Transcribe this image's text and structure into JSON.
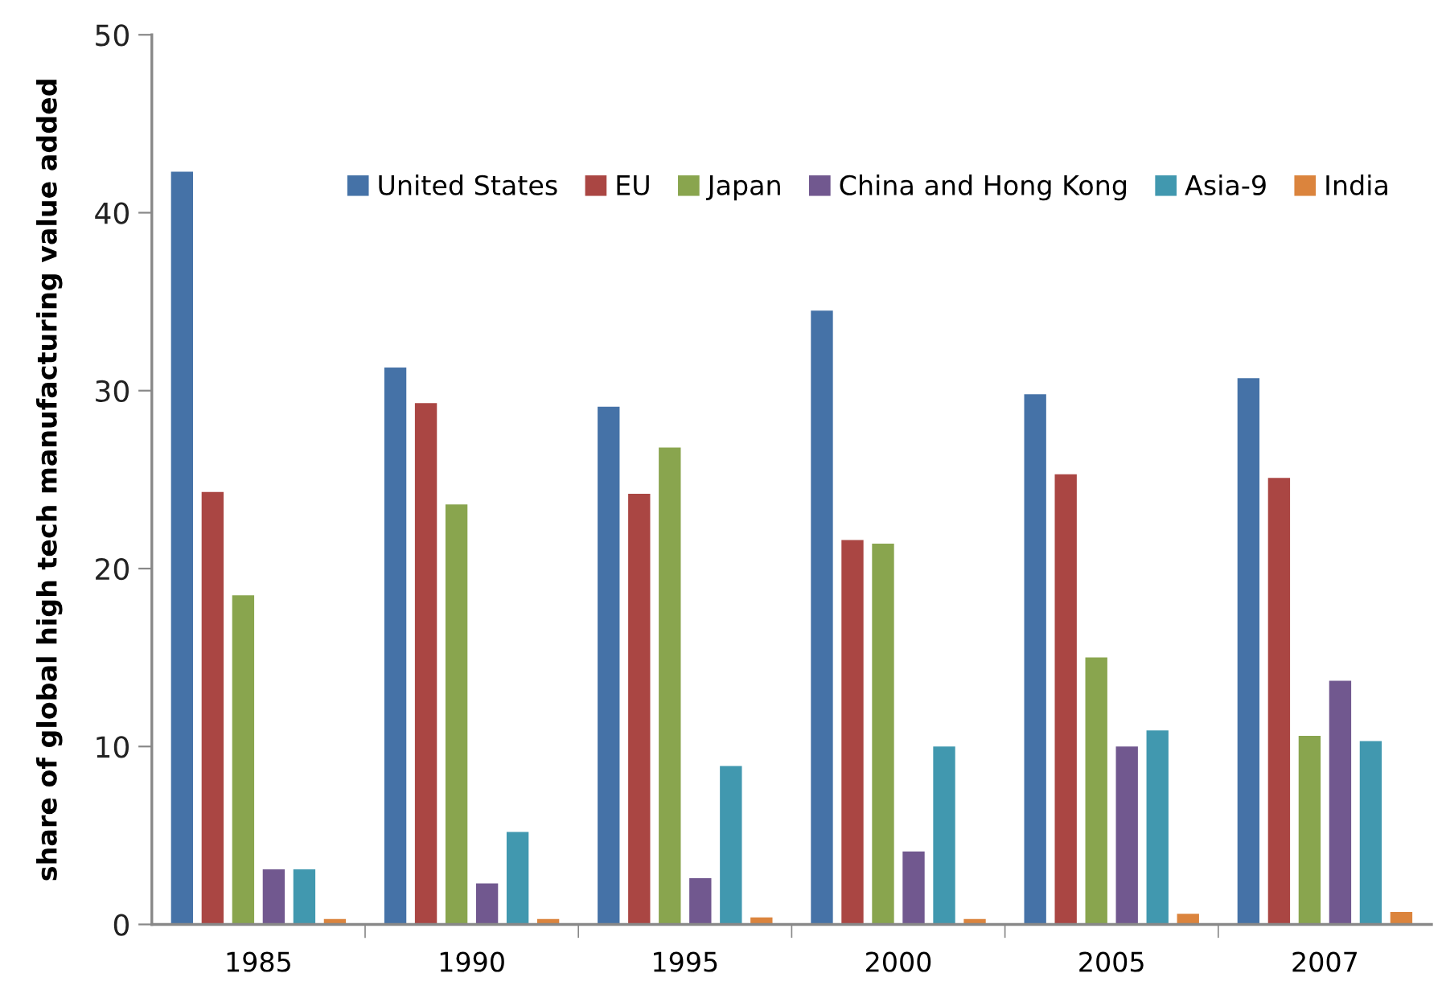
{
  "chart_data": {
    "type": "bar",
    "ylabel": "share of global high tech manufacturing value added",
    "categories": [
      "1985",
      "1990",
      "1995",
      "2000",
      "2005",
      "2007"
    ],
    "series": [
      {
        "name": "United States",
        "color": "#4572a7",
        "values": [
          42.3,
          31.3,
          29.1,
          34.5,
          29.8,
          30.7
        ]
      },
      {
        "name": "EU",
        "color": "#aa4643",
        "values": [
          24.3,
          29.3,
          24.2,
          21.6,
          25.3,
          25.1
        ]
      },
      {
        "name": "Japan",
        "color": "#89a54e",
        "values": [
          18.5,
          23.6,
          26.8,
          21.4,
          15.0,
          10.6
        ]
      },
      {
        "name": "China and Hong Kong",
        "color": "#71588f",
        "values": [
          3.1,
          2.3,
          2.6,
          4.1,
          10.0,
          13.7
        ]
      },
      {
        "name": "Asia-9",
        "color": "#4198af",
        "values": [
          3.1,
          5.2,
          8.9,
          10.0,
          10.9,
          10.3
        ]
      },
      {
        "name": "India",
        "color": "#db843d",
        "values": [
          0.3,
          0.3,
          0.4,
          0.3,
          0.6,
          0.7
        ]
      }
    ],
    "ylim": [
      0,
      50
    ],
    "yticks": [
      0,
      10,
      20,
      30,
      40,
      50
    ],
    "grid": false,
    "legend": "top"
  }
}
